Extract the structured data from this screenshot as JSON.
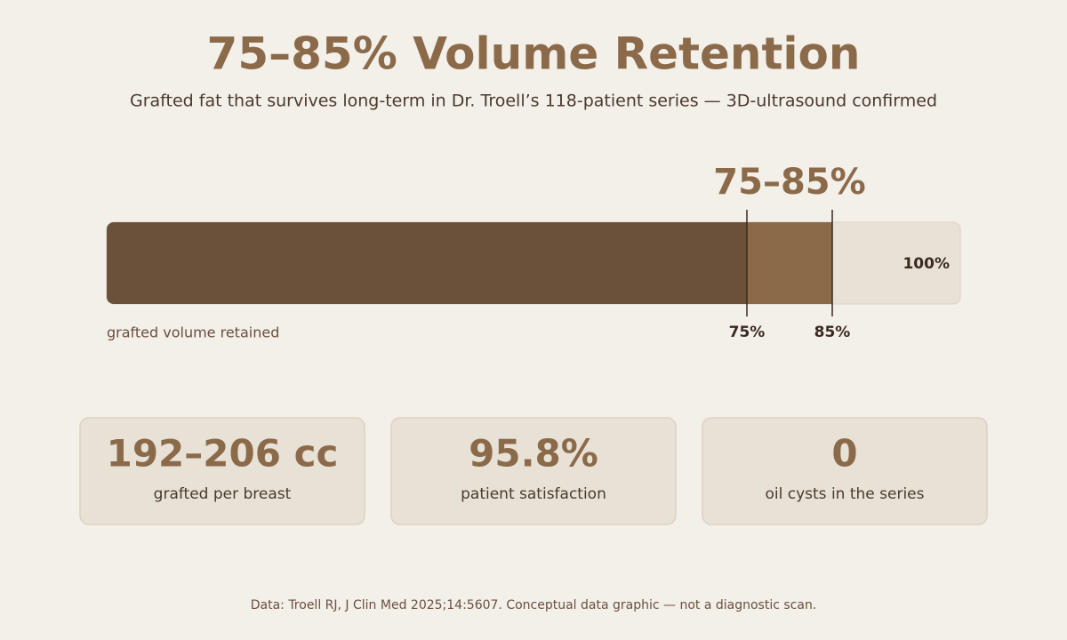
{
  "header": {
    "title": "75–85% Volume Retention",
    "subtitle": "Grafted fat that survives long-term in Dr. Troell’s 118-patient series — 3D-ultrasound confirmed"
  },
  "retention_bar": {
    "range_label": "75–85%",
    "low": {
      "value": 75,
      "label": "75%"
    },
    "high": {
      "value": 85,
      "label": "85%"
    },
    "max": {
      "value": 100,
      "label": "100%"
    },
    "caption": "grafted volume retained",
    "colors": {
      "retained": "#6b503a",
      "range": "#8b6a4a",
      "remainder": "#e8e1d6"
    }
  },
  "stats": [
    {
      "value": "192–206 cc",
      "label": "grafted per breast"
    },
    {
      "value": "95.8%",
      "label": "patient satisfaction"
    },
    {
      "value": "0",
      "label": "oil cysts in the series"
    }
  ],
  "footer": "Data: Troell RJ, J Clin Med 2025;14:5607. Conceptual data graphic — not a diagnostic scan."
}
